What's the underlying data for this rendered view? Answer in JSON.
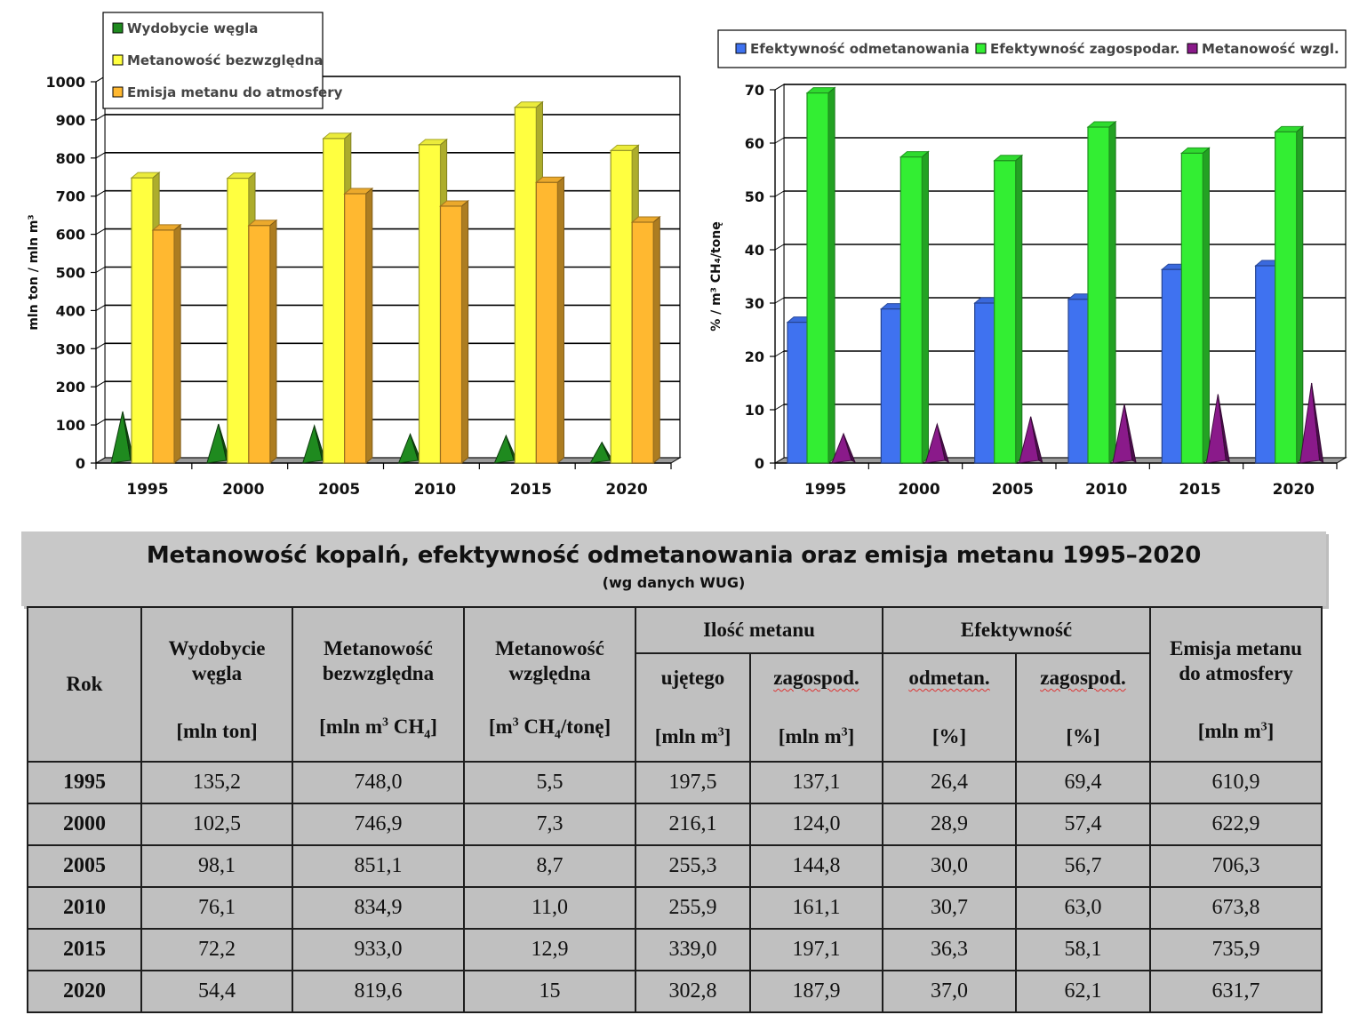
{
  "charts": {
    "left": {
      "ylabel": "mln ton  /  mln m³",
      "ylim": [
        0,
        1000
      ],
      "yticks": [
        "0",
        "100",
        "200",
        "300",
        "400",
        "500",
        "600",
        "700",
        "800",
        "900",
        "1000"
      ],
      "legend": [
        "Wydobycie węgla",
        "Metanowość bezwzględna",
        "Emisja metanu do atmosfery"
      ]
    },
    "right": {
      "ylabel": "%  /  m³ CH₄/tonę",
      "ylim": [
        0,
        70
      ],
      "yticks": [
        "0",
        "10",
        "20",
        "30",
        "40",
        "50",
        "60",
        "70"
      ],
      "legend": [
        "Efektywność odmetanowania",
        "Efektywność zagospodar.",
        "Metanowość wzgl."
      ]
    }
  },
  "chart_data": [
    {
      "type": "bar",
      "categories": [
        "1995",
        "2000",
        "2005",
        "2010",
        "2015",
        "2020"
      ],
      "series": [
        {
          "name": "Wydobycie węgla",
          "values": [
            135.2,
            102.5,
            98.1,
            76.1,
            72.2,
            54.4
          ],
          "shape": "cone",
          "color": "#1f8a1f"
        },
        {
          "name": "Metanowość bezwzględna",
          "values": [
            748.0,
            746.9,
            851.1,
            834.9,
            933.0,
            819.6
          ],
          "shape": "box",
          "color": "#ffff40"
        },
        {
          "name": "Emisja metanu do atmosfery",
          "values": [
            610.9,
            622.9,
            706.3,
            673.8,
            735.9,
            631.7
          ],
          "shape": "box",
          "color": "#ffb830"
        }
      ],
      "title": "",
      "xlabel": "",
      "ylabel": "mln ton  /  mln m³",
      "ylim": [
        0,
        1000
      ],
      "grid": true,
      "legend_position": "top-left"
    },
    {
      "type": "bar",
      "categories": [
        "1995",
        "2000",
        "2005",
        "2010",
        "2015",
        "2020"
      ],
      "series": [
        {
          "name": "Efektywność odmetanowania",
          "values": [
            26.4,
            28.9,
            30.0,
            30.7,
            36.3,
            37.0
          ],
          "shape": "box",
          "color": "#3f72f0"
        },
        {
          "name": "Efektywność zagospodar.",
          "values": [
            69.4,
            57.4,
            56.7,
            63.0,
            58.1,
            62.1
          ],
          "shape": "box",
          "color": "#33ee33"
        },
        {
          "name": "Metanowość wzgl.",
          "values": [
            5.5,
            7.3,
            8.7,
            11.0,
            12.9,
            15
          ],
          "shape": "cone",
          "color": "#8a1a8a"
        }
      ],
      "title": "",
      "xlabel": "",
      "ylabel": "%  /  m³ CH₄/tonę",
      "ylim": [
        0,
        70
      ],
      "grid": true,
      "legend_position": "top"
    }
  ],
  "table": {
    "title": "Metanowość kopalń, efektywność odmetanowania oraz emisja metanu 1995–2020",
    "subtitle": "(wg danych WUG)",
    "headers": {
      "rok": "Rok",
      "wydobycie": "Wydobycie węgla",
      "wydobycie_l1": "Wydobycie",
      "wydobycie_l2": "węgla",
      "wydobycie_unit": "[mln ton]",
      "met_bezw_l1": "Metanowość",
      "met_bezw_l2": "bezwzględna",
      "met_bezw_unit_a": "[mln m",
      "met_bezw_unit_sup": "3",
      "met_bezw_unit_b": " CH",
      "met_bezw_unit_sub": "4",
      "met_bezw_unit_c": "]",
      "met_wzgl_l1": "Metanowość",
      "met_wzgl_l2": "względna",
      "met_wzgl_unit_a": "[m",
      "met_wzgl_unit_sup": "3",
      "met_wzgl_unit_b": " CH",
      "met_wzgl_unit_sub": "4",
      "met_wzgl_unit_c": "/tonę]",
      "ilosc": "Ilość metanu",
      "ujetego": "ujętego",
      "zagospod": "zagospod.",
      "mln_m_a": "[mln m",
      "mln_m_sup": "3",
      "mln_m_c": "]",
      "efektywnosc": "Efektywność",
      "odmetan": "odmetan.",
      "zagospod2": "zagospod.",
      "pct": "[%]",
      "emisja_l1": "Emisja metanu",
      "emisja_l2": "do atmosfery"
    },
    "rows": [
      [
        "1995",
        "135,2",
        "748,0",
        "5,5",
        "197,5",
        "137,1",
        "26,4",
        "69,4",
        "610,9"
      ],
      [
        "2000",
        "102,5",
        "746,9",
        "7,3",
        "216,1",
        "124,0",
        "28,9",
        "57,4",
        "622,9"
      ],
      [
        "2005",
        "98,1",
        "851,1",
        "8,7",
        "255,3",
        "144,8",
        "30,0",
        "56,7",
        "706,3"
      ],
      [
        "2010",
        "76,1",
        "834,9",
        "11,0",
        "255,9",
        "161,1",
        "30,7",
        "63,0",
        "673,8"
      ],
      [
        "2015",
        "72,2",
        "933,0",
        "12,9",
        "339,0",
        "197,1",
        "36,3",
        "58,1",
        "735,9"
      ],
      [
        "2020",
        "54,4",
        "819,6",
        "15",
        "302,8",
        "187,9",
        "37,0",
        "62,1",
        "631,7"
      ]
    ]
  }
}
